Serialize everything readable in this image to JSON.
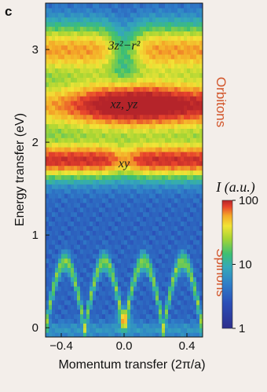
{
  "panel_label": "c",
  "chart_data": {
    "type": "heatmap",
    "xlabel": "Momentum transfer (2π/a)",
    "ylabel": "Energy transfer (eV)",
    "xlim": [
      -0.5,
      0.5
    ],
    "ylim": [
      -0.1,
      3.5
    ],
    "x_ticks": [
      {
        "value": -0.4,
        "label": "−0.4"
      },
      {
        "value": 0.0,
        "label": "0.0"
      },
      {
        "value": 0.4,
        "label": "0.4"
      }
    ],
    "y_ticks": [
      {
        "value": 0,
        "label": "0"
      },
      {
        "value": 1,
        "label": "1"
      },
      {
        "value": 2,
        "label": "2"
      },
      {
        "value": 3,
        "label": "3"
      }
    ],
    "annotations": [
      {
        "text": "3z²−r²",
        "x": 0.0,
        "y": 3.05
      },
      {
        "text": "xz, yz",
        "x": 0.0,
        "y": 2.42
      },
      {
        "text": "xy",
        "x": 0.0,
        "y": 1.78
      }
    ],
    "side_labels": {
      "upper": "Orbitons",
      "lower": "Spinons"
    },
    "colorbar": {
      "title": "I (a.u.)",
      "scale": "log",
      "ticks": [
        {
          "value": 100,
          "label": "100"
        },
        {
          "value": 10,
          "label": "10"
        },
        {
          "value": 1,
          "label": "1"
        }
      ]
    },
    "colormap": [
      "#2e2f8c",
      "#2b4fb8",
      "#2f7fc8",
      "#35a9b8",
      "#3cbf73",
      "#a6d534",
      "#f2e436",
      "#f4a828",
      "#e8442c",
      "#b5242a"
    ],
    "bands": [
      {
        "name": "3z²−r²",
        "center_eV": 3.0,
        "peak_level": 0.62
      },
      {
        "name": "xz, yz",
        "center_eV": 2.42,
        "peak_level": 0.93
      },
      {
        "name": "xy",
        "center_eV": 1.8,
        "peak_level": 0.66
      },
      {
        "name": "spinon",
        "max_eV": 0.72,
        "peak_level": 0.36
      }
    ]
  }
}
